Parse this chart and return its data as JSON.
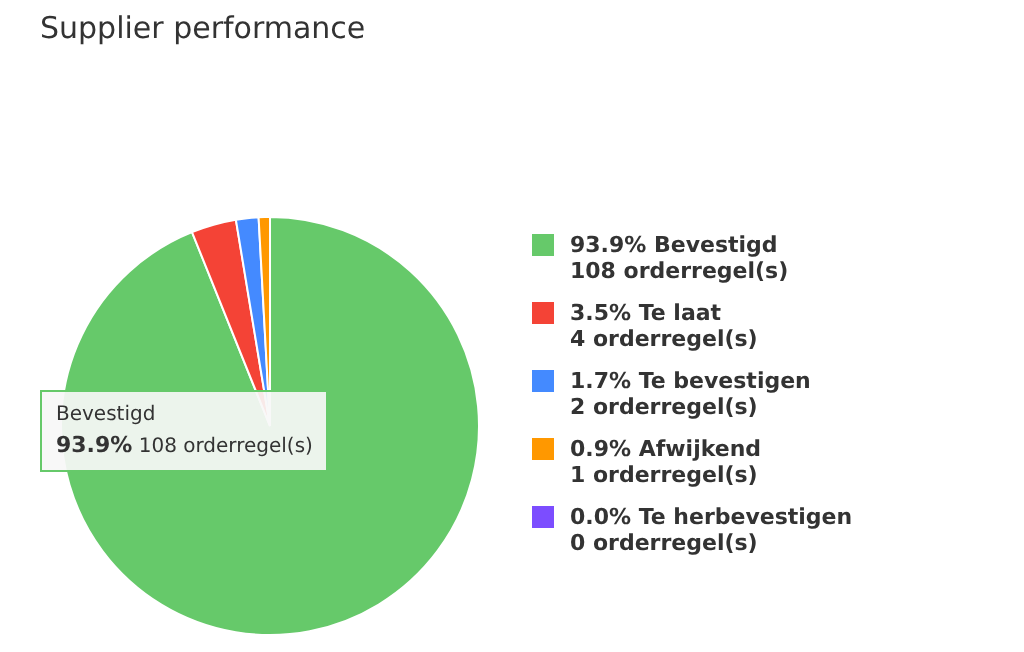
{
  "chart_data": {
    "type": "pie",
    "title": "Supplier performance",
    "categories": [
      "93.9% Bevestigd",
      "3.5% Te laat",
      "1.7% Te bevestigen",
      "0.9% Afwijkend",
      "0.0% Te herbevestigen"
    ],
    "values": [
      108,
      4,
      2,
      1,
      0
    ],
    "colors": [
      "#66c96a",
      "#f44336",
      "#448aff",
      "#ff9800",
      "#7c4dff"
    ],
    "value_labels": [
      "108 orderregel(s)",
      "4 orderregel(s)",
      "2 orderregel(s)",
      "1 orderregel(s)",
      "0 orderregel(s)"
    ],
    "legend": "right",
    "annotations": [
      "Bevestigd",
      "93.9% 108 orderregel(s)"
    ]
  }
}
